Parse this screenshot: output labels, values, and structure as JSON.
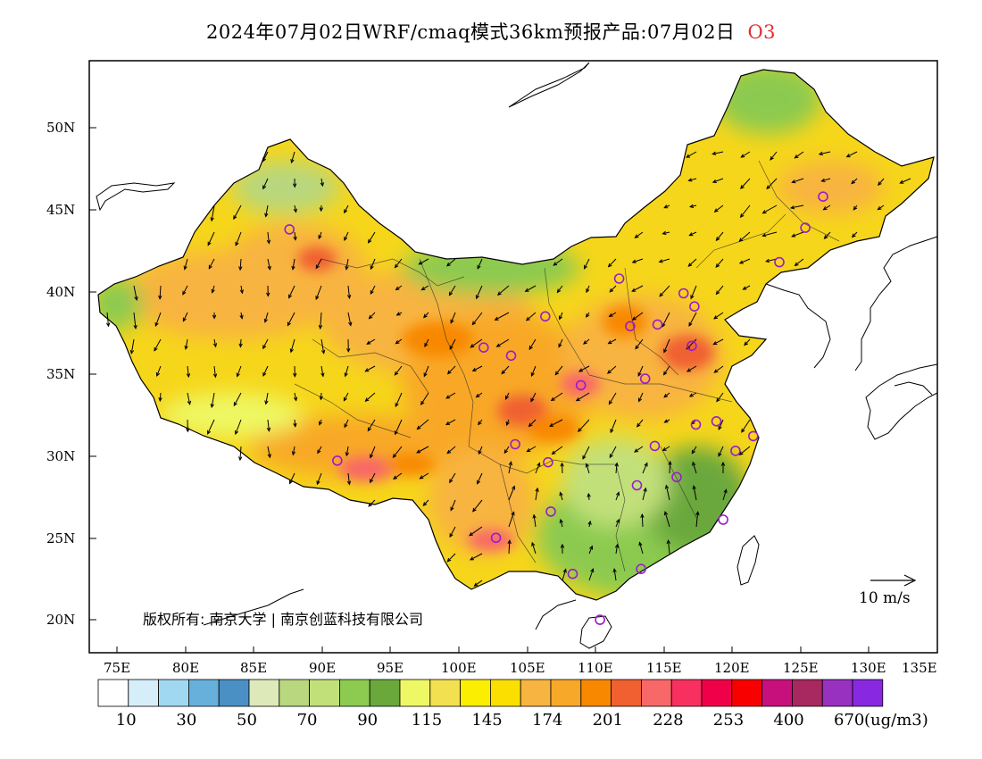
{
  "title": {
    "main": "2024年07月02日WRF/cmaq模式36km预报产品:07月02日",
    "pollutant": "O3"
  },
  "axes": {
    "lat_labels": [
      "50N",
      "45N",
      "40N",
      "35N",
      "30N",
      "25N",
      "20N"
    ],
    "lon_labels": [
      "75E",
      "80E",
      "85E",
      "90E",
      "95E",
      "100E",
      "105E",
      "110E",
      "115E",
      "120E",
      "125E",
      "130E",
      "135E"
    ]
  },
  "copyright": "版权所有: 南京大学 | 南京创蓝科技有限公司",
  "wind_reference": "10 m/s",
  "colorbar": {
    "colors": [
      "#ffffff",
      "#d6eefa",
      "#a0d8f2",
      "#68b0dc",
      "#4a90c4",
      "#dde9b9",
      "#b8d77e",
      "#c2e07a",
      "#8cca50",
      "#6aa83c",
      "#eef864",
      "#f2e050",
      "#fcee00",
      "#fadf00",
      "#f8b440",
      "#f8a828",
      "#f88800",
      "#f06030",
      "#f86868",
      "#f83060",
      "#f00048",
      "#f80000",
      "#c8107c",
      "#a82860",
      "#9830c0",
      "#8828e0"
    ],
    "tick_labels": [
      "10",
      "30",
      "50",
      "70",
      "90",
      "115",
      "145",
      "174",
      "201",
      "228",
      "253",
      "400",
      "670"
    ],
    "unit": "(ug/m3)"
  },
  "city_markers": [
    {
      "lon": 87.6,
      "lat": 43.8
    },
    {
      "lon": 91.1,
      "lat": 29.7
    },
    {
      "lon": 101.8,
      "lat": 36.6
    },
    {
      "lon": 103.8,
      "lat": 36.1
    },
    {
      "lon": 106.3,
      "lat": 38.5
    },
    {
      "lon": 104.1,
      "lat": 30.7
    },
    {
      "lon": 106.5,
      "lat": 29.6
    },
    {
      "lon": 106.7,
      "lat": 26.6
    },
    {
      "lon": 102.7,
      "lat": 25.0
    },
    {
      "lon": 108.9,
      "lat": 34.3
    },
    {
      "lon": 111.7,
      "lat": 40.8
    },
    {
      "lon": 112.5,
      "lat": 37.9
    },
    {
      "lon": 114.5,
      "lat": 38.0
    },
    {
      "lon": 116.4,
      "lat": 39.9
    },
    {
      "lon": 117.2,
      "lat": 39.1
    },
    {
      "lon": 117.0,
      "lat": 36.7
    },
    {
      "lon": 113.6,
      "lat": 34.7
    },
    {
      "lon": 114.3,
      "lat": 30.6
    },
    {
      "lon": 117.3,
      "lat": 31.9
    },
    {
      "lon": 118.8,
      "lat": 32.1
    },
    {
      "lon": 121.5,
      "lat": 31.2
    },
    {
      "lon": 120.2,
      "lat": 30.3
    },
    {
      "lon": 115.9,
      "lat": 28.7
    },
    {
      "lon": 113.0,
      "lat": 28.2
    },
    {
      "lon": 119.3,
      "lat": 26.1
    },
    {
      "lon": 113.3,
      "lat": 23.1
    },
    {
      "lon": 108.3,
      "lat": 22.8
    },
    {
      "lon": 110.3,
      "lat": 20.0
    },
    {
      "lon": 123.4,
      "lat": 41.8
    },
    {
      "lon": 125.3,
      "lat": 43.9
    },
    {
      "lon": 126.6,
      "lat": 45.8
    }
  ]
}
